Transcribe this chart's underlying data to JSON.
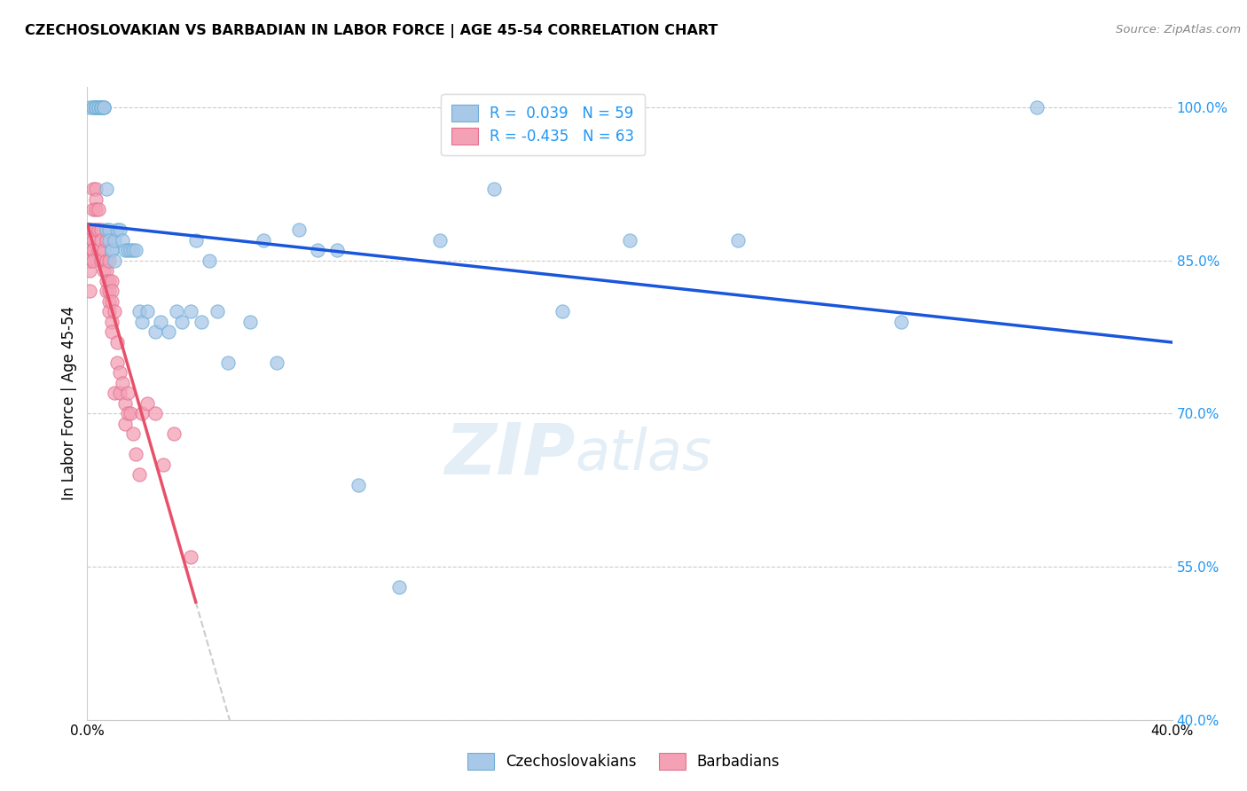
{
  "title": "CZECHOSLOVAKIAN VS BARBADIAN IN LABOR FORCE | AGE 45-54 CORRELATION CHART",
  "source": "Source: ZipAtlas.com",
  "ylabel": "In Labor Force | Age 45-54",
  "x_min": 0.0,
  "x_max": 0.4,
  "y_min": 0.4,
  "y_max": 1.02,
  "y_ticks": [
    0.4,
    0.55,
    0.7,
    0.85,
    1.0
  ],
  "legend_r_czech": "R =  0.039",
  "legend_n_czech": "N = 59",
  "legend_r_barb": "R = -0.435",
  "legend_n_barb": "N = 63",
  "czech_color": "#a8c8e8",
  "czech_edge": "#6baed6",
  "barb_color": "#f4a0b5",
  "barb_edge": "#e07090",
  "trend_czech_color": "#1a56db",
  "trend_barb_color": "#e8506a",
  "trend_barb_ext_color": "#cccccc",
  "watermark_zip": "ZIP",
  "watermark_atlas": "atlas",
  "czech_scatter_x": [
    0.001,
    0.002,
    0.002,
    0.003,
    0.003,
    0.003,
    0.004,
    0.004,
    0.005,
    0.005,
    0.005,
    0.006,
    0.006,
    0.006,
    0.007,
    0.007,
    0.008,
    0.008,
    0.009,
    0.009,
    0.01,
    0.01,
    0.011,
    0.012,
    0.013,
    0.014,
    0.015,
    0.016,
    0.017,
    0.018,
    0.019,
    0.02,
    0.022,
    0.025,
    0.027,
    0.03,
    0.033,
    0.035,
    0.038,
    0.04,
    0.042,
    0.045,
    0.048,
    0.052,
    0.06,
    0.065,
    0.07,
    0.078,
    0.085,
    0.092,
    0.1,
    0.115,
    0.13,
    0.15,
    0.175,
    0.2,
    0.24,
    0.3,
    0.35
  ],
  "czech_scatter_y": [
    1.0,
    1.0,
    1.0,
    1.0,
    1.0,
    1.0,
    1.0,
    1.0,
    1.0,
    1.0,
    1.0,
    1.0,
    1.0,
    1.0,
    0.92,
    0.88,
    0.88,
    0.87,
    0.86,
    0.86,
    0.87,
    0.85,
    0.88,
    0.88,
    0.87,
    0.86,
    0.86,
    0.86,
    0.86,
    0.86,
    0.8,
    0.79,
    0.8,
    0.78,
    0.79,
    0.78,
    0.8,
    0.79,
    0.8,
    0.87,
    0.79,
    0.85,
    0.8,
    0.75,
    0.79,
    0.87,
    0.75,
    0.88,
    0.86,
    0.86,
    0.63,
    0.53,
    0.87,
    0.92,
    0.8,
    0.87,
    0.87,
    0.79,
    1.0
  ],
  "barb_scatter_x": [
    0.0,
    0.0,
    0.001,
    0.001,
    0.001,
    0.001,
    0.001,
    0.001,
    0.001,
    0.002,
    0.002,
    0.002,
    0.002,
    0.002,
    0.002,
    0.003,
    0.003,
    0.003,
    0.003,
    0.004,
    0.004,
    0.004,
    0.005,
    0.005,
    0.005,
    0.006,
    0.006,
    0.007,
    0.007,
    0.007,
    0.007,
    0.007,
    0.008,
    0.008,
    0.008,
    0.008,
    0.008,
    0.009,
    0.009,
    0.009,
    0.009,
    0.009,
    0.01,
    0.01,
    0.011,
    0.011,
    0.012,
    0.012,
    0.013,
    0.014,
    0.014,
    0.015,
    0.015,
    0.016,
    0.017,
    0.018,
    0.019,
    0.02,
    0.022,
    0.025,
    0.028,
    0.032,
    0.038
  ],
  "barb_scatter_y": [
    0.86,
    0.85,
    0.88,
    0.87,
    0.86,
    0.85,
    0.85,
    0.84,
    0.82,
    0.92,
    0.9,
    0.88,
    0.87,
    0.86,
    0.85,
    0.92,
    0.91,
    0.9,
    0.88,
    0.9,
    0.88,
    0.86,
    0.88,
    0.87,
    0.85,
    0.86,
    0.84,
    0.87,
    0.85,
    0.84,
    0.83,
    0.82,
    0.85,
    0.83,
    0.82,
    0.81,
    0.8,
    0.83,
    0.82,
    0.81,
    0.79,
    0.78,
    0.8,
    0.72,
    0.77,
    0.75,
    0.74,
    0.72,
    0.73,
    0.71,
    0.69,
    0.72,
    0.7,
    0.7,
    0.68,
    0.66,
    0.64,
    0.7,
    0.71,
    0.7,
    0.65,
    0.68,
    0.56
  ]
}
